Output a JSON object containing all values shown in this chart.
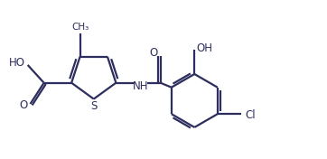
{
  "bg_color": "#ffffff",
  "line_color": "#2d2d5e",
  "line_width": 1.6,
  "font_size": 8.5,
  "figsize": [
    3.62,
    1.76
  ],
  "dpi": 100,
  "xlim": [
    0,
    10
  ],
  "ylim": [
    0,
    4.86
  ]
}
